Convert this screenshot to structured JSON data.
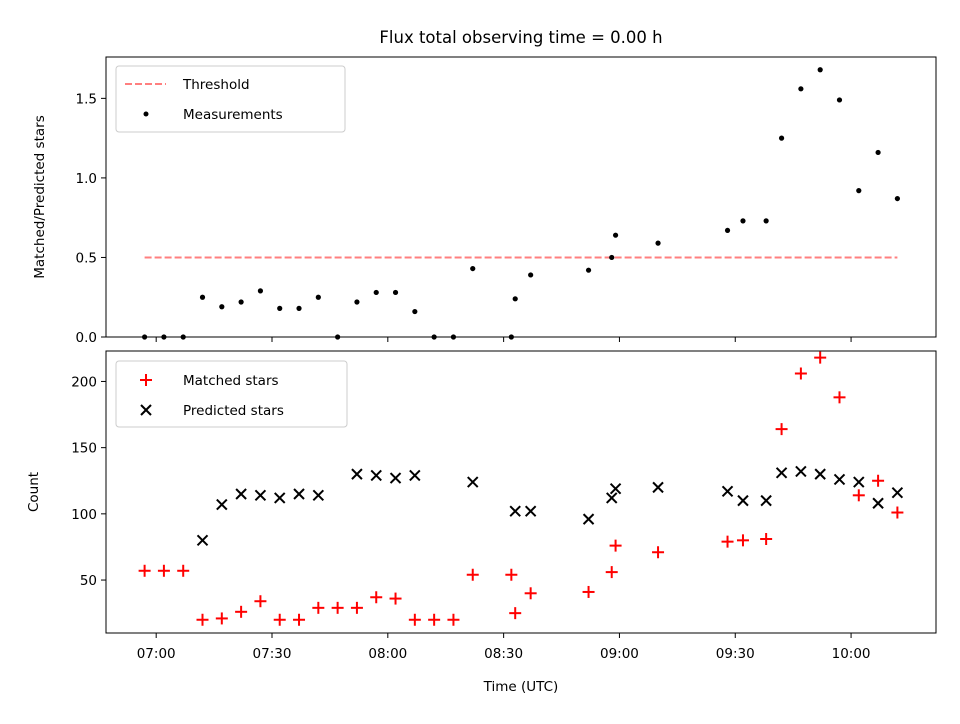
{
  "chart_data": [
    {
      "type": "scatter",
      "title": "Flux total observing time = 0.00 h",
      "xlabel": "",
      "ylabel": "Matched/Predicted stars",
      "ylim": [
        0,
        1.76
      ],
      "xlim": [
        "06:47",
        "10:22"
      ],
      "yticks": [
        "0.0",
        "0.5",
        "1.0",
        "1.5"
      ],
      "legend": {
        "placement": "top-left",
        "entries": [
          "Threshold",
          "Measurements"
        ]
      },
      "threshold": {
        "name": "Threshold",
        "value": 0.5,
        "from": "06:57",
        "to": "10:12",
        "color": "#ff7f7f"
      },
      "series": [
        {
          "name": "Measurements",
          "color": "#000000",
          "x": [
            "06:57",
            "07:02",
            "07:07",
            "07:12",
            "07:17",
            "07:22",
            "07:27",
            "07:32",
            "07:37",
            "07:42",
            "07:47",
            "07:52",
            "07:57",
            "08:02",
            "08:07",
            "08:12",
            "08:17",
            "08:22",
            "08:32",
            "08:33",
            "08:37",
            "08:52",
            "08:58",
            "08:59",
            "09:10",
            "09:28",
            "09:32",
            "09:38",
            "09:42",
            "09:47",
            "09:52",
            "09:57",
            "10:02",
            "10:07",
            "10:12"
          ],
          "y": [
            0.0,
            0.0,
            0.0,
            0.25,
            0.19,
            0.22,
            0.29,
            0.18,
            0.18,
            0.25,
            0.0,
            0.22,
            0.28,
            0.28,
            0.16,
            0.0,
            0.0,
            0.43,
            0.0,
            0.24,
            0.39,
            0.42,
            0.5,
            0.64,
            0.59,
            0.67,
            0.73,
            0.73,
            1.25,
            1.56,
            1.68,
            1.49,
            0.92,
            1.16,
            0.87
          ]
        }
      ]
    },
    {
      "type": "scatter",
      "title": "",
      "xlabel": "Time (UTC)",
      "ylabel": "Count",
      "ylim": [
        10,
        223
      ],
      "xlim": [
        "06:47",
        "10:22"
      ],
      "yticks": [
        "50",
        "100",
        "150",
        "200"
      ],
      "xticks": [
        "07:00",
        "07:30",
        "08:00",
        "08:30",
        "09:00",
        "09:30",
        "10:00"
      ],
      "legend": {
        "placement": "top-left",
        "entries": [
          "Matched stars",
          "Predicted stars"
        ]
      },
      "series": [
        {
          "name": "Matched stars",
          "marker": "plus",
          "color": "#ff0000",
          "x": [
            "06:57",
            "07:02",
            "07:07",
            "07:12",
            "07:17",
            "07:22",
            "07:27",
            "07:32",
            "07:37",
            "07:42",
            "07:47",
            "07:52",
            "07:57",
            "08:02",
            "08:07",
            "08:12",
            "08:17",
            "08:22",
            "08:32",
            "08:33",
            "08:37",
            "08:52",
            "08:58",
            "08:59",
            "09:10",
            "09:28",
            "09:32",
            "09:38",
            "09:42",
            "09:47",
            "09:52",
            "09:57",
            "10:02",
            "10:07",
            "10:12"
          ],
          "y": [
            57,
            57,
            57,
            20,
            21,
            26,
            34,
            20,
            20,
            29,
            29,
            29,
            37,
            36,
            20,
            20,
            20,
            54,
            54,
            25,
            40,
            41,
            56,
            76,
            71,
            79,
            80,
            81,
            164,
            206,
            218,
            188,
            114,
            125,
            101
          ]
        },
        {
          "name": "Predicted stars",
          "marker": "x",
          "color": "#000000",
          "x": [
            "07:12",
            "07:17",
            "07:22",
            "07:27",
            "07:32",
            "07:37",
            "07:42",
            "07:52",
            "07:57",
            "08:02",
            "08:07",
            "08:22",
            "08:33",
            "08:37",
            "08:52",
            "08:58",
            "08:59",
            "09:10",
            "09:28",
            "09:32",
            "09:38",
            "09:42",
            "09:47",
            "09:52",
            "09:57",
            "10:02",
            "10:07",
            "10:12"
          ],
          "y": [
            80,
            107,
            115,
            114,
            112,
            115,
            114,
            130,
            129,
            127,
            129,
            124,
            102,
            102,
            96,
            112,
            119,
            120,
            117,
            110,
            110,
            131,
            132,
            130,
            126,
            124,
            108,
            116
          ]
        }
      ]
    }
  ]
}
